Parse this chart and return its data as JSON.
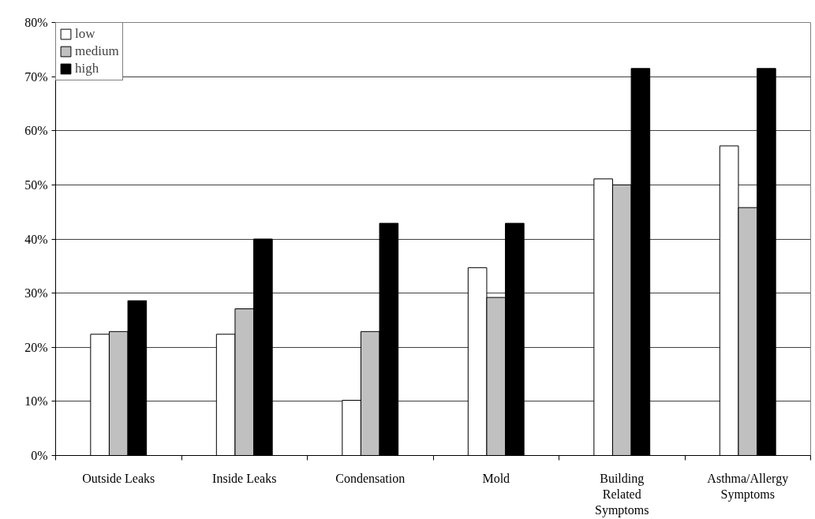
{
  "chart_data": {
    "type": "bar",
    "categories": [
      "Outside Leaks",
      "Inside Leaks",
      "Condensation",
      "Mold",
      "Building Related Symptoms",
      "Asthma/Allergy Symptoms"
    ],
    "series": [
      {
        "name": "low",
        "color": "#ffffff",
        "values": [
          22.4,
          22.4,
          10.2,
          34.7,
          51.1,
          57.2
        ]
      },
      {
        "name": "medium",
        "color": "#c0c0c0",
        "values": [
          22.9,
          27.1,
          22.9,
          29.2,
          50.0,
          45.8
        ]
      },
      {
        "name": "high",
        "color": "#000000",
        "values": [
          28.6,
          40.0,
          42.9,
          42.9,
          71.5,
          71.5
        ]
      }
    ],
    "ylim": [
      0,
      80
    ],
    "yticks": [
      {
        "value": 0,
        "label": "0%"
      },
      {
        "value": 10,
        "label": "10%"
      },
      {
        "value": 20,
        "label": "20%"
      },
      {
        "value": 30,
        "label": "30%"
      },
      {
        "value": 40,
        "label": "40%"
      },
      {
        "value": 50,
        "label": "50%"
      },
      {
        "value": 60,
        "label": "60%"
      },
      {
        "value": 70,
        "label": "70%"
      },
      {
        "value": 80,
        "label": "80%"
      }
    ],
    "grid": "y",
    "legend": "top left"
  }
}
